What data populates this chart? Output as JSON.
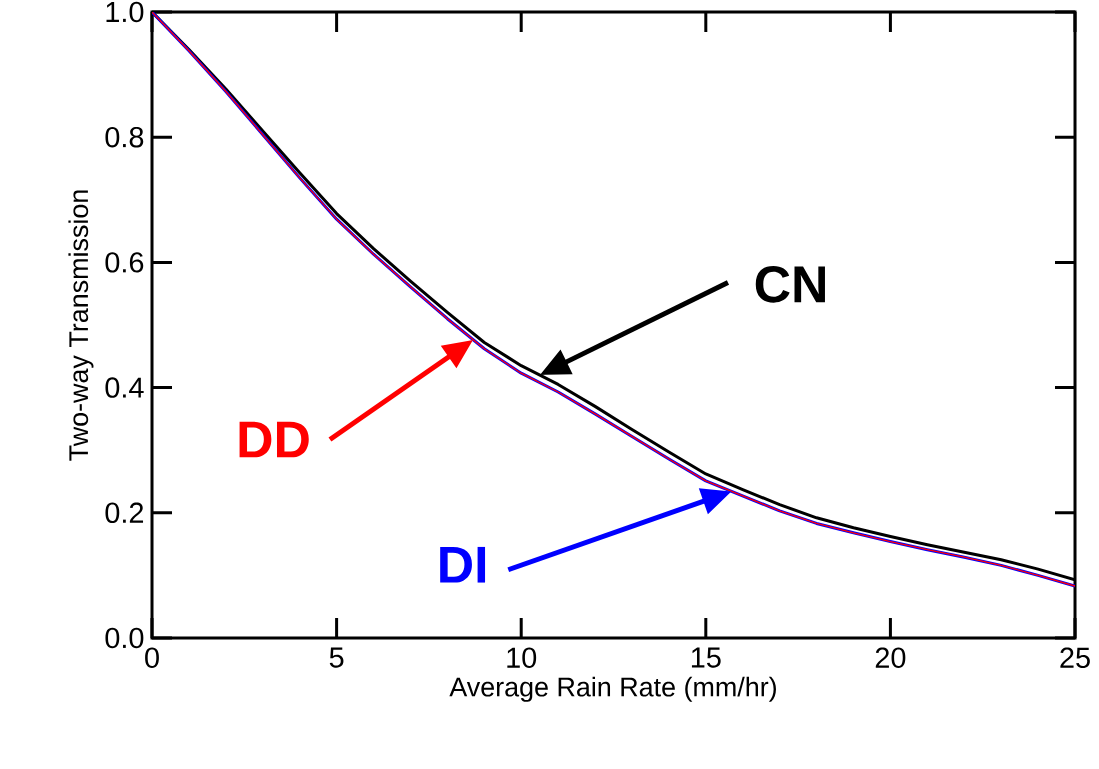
{
  "chart_data": {
    "type": "line",
    "xlabel": "Average Rain Rate (mm/hr)",
    "ylabel": "Two-way Transmission",
    "x": [
      0,
      1,
      2,
      3,
      4,
      5,
      6,
      7,
      8,
      9,
      10,
      11,
      12,
      13,
      14,
      15,
      16,
      17,
      18,
      19,
      20,
      21,
      22,
      23,
      24,
      25
    ],
    "series": [
      {
        "name": "CN",
        "color": "#000000",
        "values": [
          1.0,
          0.94,
          0.877,
          0.81,
          0.743,
          0.678,
          0.622,
          0.57,
          0.52,
          0.472,
          0.435,
          0.405,
          0.37,
          0.333,
          0.297,
          0.262,
          0.237,
          0.213,
          0.192,
          0.176,
          0.162,
          0.149,
          0.137,
          0.125,
          0.11,
          0.093
        ]
      },
      {
        "name": "DD",
        "color": "#ff0000",
        "values": [
          1.0,
          0.938,
          0.873,
          0.804,
          0.735,
          0.669,
          0.613,
          0.561,
          0.51,
          0.462,
          0.423,
          0.393,
          0.358,
          0.322,
          0.286,
          0.251,
          0.227,
          0.203,
          0.183,
          0.168,
          0.154,
          0.141,
          0.129,
          0.116,
          0.1,
          0.083
        ]
      },
      {
        "name": "DI",
        "color": "#0000ff",
        "values": [
          1.0,
          0.938,
          0.873,
          0.804,
          0.735,
          0.669,
          0.613,
          0.561,
          0.51,
          0.462,
          0.423,
          0.393,
          0.358,
          0.322,
          0.286,
          0.251,
          0.227,
          0.203,
          0.183,
          0.168,
          0.154,
          0.141,
          0.129,
          0.116,
          0.1,
          0.083
        ]
      }
    ],
    "xlim": [
      0,
      25
    ],
    "ylim": [
      0,
      1
    ],
    "xticks": [
      0,
      5,
      10,
      15,
      20,
      25
    ],
    "yticks": [
      {
        "value": 0,
        "label": "0.0"
      },
      0.2,
      0.4,
      0.6,
      0.8,
      {
        "value": 1,
        "label": "1.0"
      }
    ],
    "line_style": "solid"
  }
}
